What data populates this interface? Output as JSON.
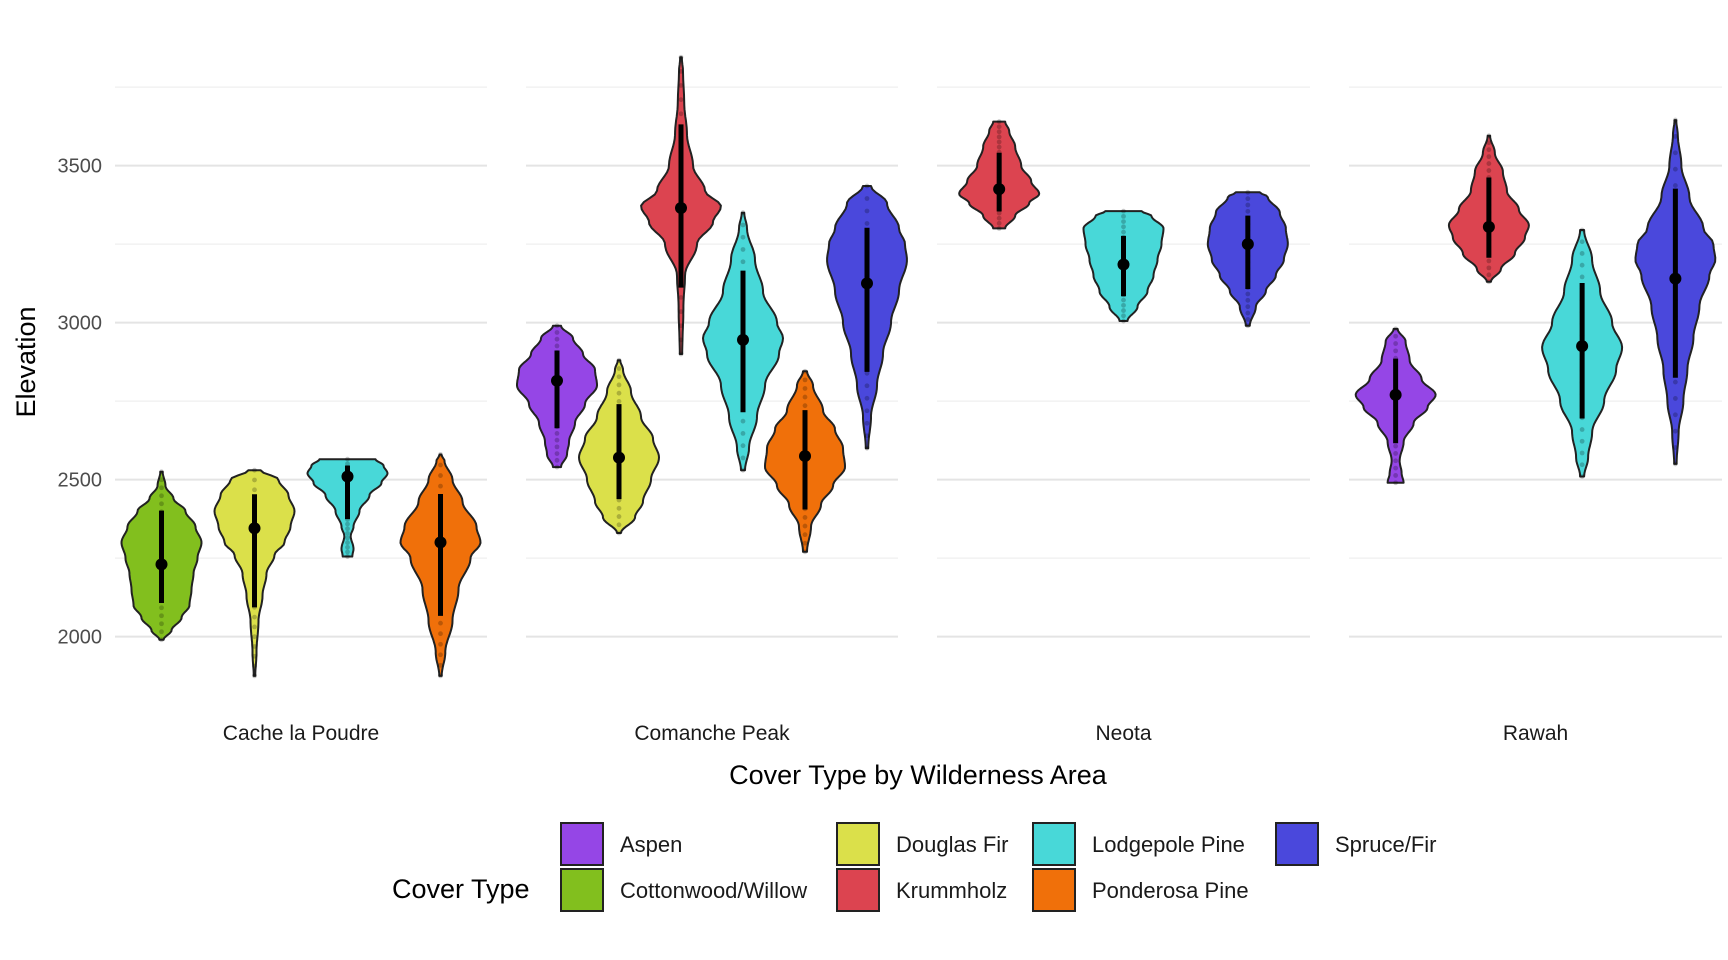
{
  "chart_data": {
    "type": "violin",
    "title": "",
    "xlabel": "Cover Type by Wilderness Area",
    "ylabel": "Elevation",
    "ylim": [
      1830,
      3900
    ],
    "yticks": [
      2000,
      2500,
      3000,
      3500
    ],
    "grid": true,
    "legend": {
      "title": "Cover Type",
      "placement": "bottom",
      "entries": [
        {
          "name": "Aspen",
          "color": "#9546e6"
        },
        {
          "name": "Cottonwood/Willow",
          "color": "#82bf1e"
        },
        {
          "name": "Douglas Fir",
          "color": "#dbe04a"
        },
        {
          "name": "Krummholz",
          "color": "#dc4450"
        },
        {
          "name": "Lodgepole Pine",
          "color": "#48d8d8"
        },
        {
          "name": "Ponderosa Pine",
          "color": "#f0700a"
        },
        {
          "name": "Spruce/Fir",
          "color": "#4a48dc"
        }
      ]
    },
    "facets": [
      {
        "name": "Cache la Poudre",
        "violins": [
          {
            "cover": "Cottonwood/Willow",
            "min": 1990,
            "max": 2525,
            "mean": 2230,
            "median": 2250,
            "profile": [
              [
                1990,
                0.05
              ],
              [
                2020,
                0.25
              ],
              [
                2060,
                0.5
              ],
              [
                2100,
                0.7
              ],
              [
                2150,
                0.75
              ],
              [
                2200,
                0.8
              ],
              [
                2250,
                0.9
              ],
              [
                2300,
                1.0
              ],
              [
                2350,
                0.85
              ],
              [
                2400,
                0.6
              ],
              [
                2440,
                0.3
              ],
              [
                2480,
                0.1
              ],
              [
                2525,
                0.03
              ]
            ]
          },
          {
            "cover": "Douglas Fir",
            "min": 1875,
            "max": 2530,
            "mean": 2345,
            "median": 2360,
            "profile": [
              [
                1875,
                0.02
              ],
              [
                1950,
                0.05
              ],
              [
                2050,
                0.1
              ],
              [
                2130,
                0.2
              ],
              [
                2200,
                0.3
              ],
              [
                2260,
                0.5
              ],
              [
                2300,
                0.75
              ],
              [
                2350,
                0.9
              ],
              [
                2400,
                1.0
              ],
              [
                2450,
                0.85
              ],
              [
                2500,
                0.6
              ],
              [
                2530,
                0.15
              ]
            ]
          },
          {
            "cover": "Lodgepole Pine",
            "min": 2255,
            "max": 2565,
            "mean": 2510,
            "median": 2520,
            "profile": [
              [
                2255,
                0.12
              ],
              [
                2280,
                0.15
              ],
              [
                2320,
                0.08
              ],
              [
                2350,
                0.15
              ],
              [
                2400,
                0.3
              ],
              [
                2450,
                0.55
              ],
              [
                2490,
                0.85
              ],
              [
                2520,
                1.0
              ],
              [
                2545,
                0.9
              ],
              [
                2565,
                0.7
              ]
            ]
          },
          {
            "cover": "Ponderosa Pine",
            "min": 1875,
            "max": 2580,
            "mean": 2300,
            "median": 2300,
            "profile": [
              [
                1875,
                0.03
              ],
              [
                1950,
                0.12
              ],
              [
                2050,
                0.3
              ],
              [
                2150,
                0.45
              ],
              [
                2250,
                0.75
              ],
              [
                2300,
                1.0
              ],
              [
                2350,
                0.9
              ],
              [
                2430,
                0.55
              ],
              [
                2500,
                0.3
              ],
              [
                2560,
                0.1
              ],
              [
                2580,
                0.02
              ]
            ]
          }
        ]
      },
      {
        "name": "Comanche Peak",
        "violins": [
          {
            "cover": "Aspen",
            "min": 2540,
            "max": 2990,
            "mean": 2815,
            "median": 2815,
            "profile": [
              [
                2540,
                0.1
              ],
              [
                2580,
                0.25
              ],
              [
                2620,
                0.3
              ],
              [
                2680,
                0.45
              ],
              [
                2740,
                0.7
              ],
              [
                2800,
                1.0
              ],
              [
                2850,
                0.95
              ],
              [
                2900,
                0.65
              ],
              [
                2950,
                0.4
              ],
              [
                2990,
                0.1
              ]
            ]
          },
          {
            "cover": "Douglas Fir",
            "min": 2330,
            "max": 2880,
            "mean": 2570,
            "median": 2570,
            "profile": [
              [
                2330,
                0.05
              ],
              [
                2380,
                0.4
              ],
              [
                2430,
                0.6
              ],
              [
                2500,
                0.8
              ],
              [
                2570,
                1.0
              ],
              [
                2630,
                0.85
              ],
              [
                2700,
                0.55
              ],
              [
                2780,
                0.3
              ],
              [
                2850,
                0.1
              ],
              [
                2880,
                0.03
              ]
            ]
          },
          {
            "cover": "Krummholz",
            "min": 2900,
            "max": 3845,
            "mean": 3365,
            "median": 3370,
            "profile": [
              [
                2900,
                0.03
              ],
              [
                3050,
                0.06
              ],
              [
                3150,
                0.1
              ],
              [
                3250,
                0.4
              ],
              [
                3320,
                0.8
              ],
              [
                3370,
                1.0
              ],
              [
                3420,
                0.6
              ],
              [
                3500,
                0.3
              ],
              [
                3600,
                0.15
              ],
              [
                3700,
                0.08
              ],
              [
                3800,
                0.05
              ],
              [
                3845,
                0.02
              ]
            ]
          },
          {
            "cover": "Lodgepole Pine",
            "min": 2530,
            "max": 3350,
            "mean": 2945,
            "median": 2940,
            "profile": [
              [
                2530,
                0.05
              ],
              [
                2600,
                0.15
              ],
              [
                2700,
                0.35
              ],
              [
                2800,
                0.55
              ],
              [
                2900,
                0.9
              ],
              [
                2950,
                1.0
              ],
              [
                3000,
                0.85
              ],
              [
                3100,
                0.5
              ],
              [
                3200,
                0.3
              ],
              [
                3300,
                0.1
              ],
              [
                3350,
                0.03
              ]
            ]
          },
          {
            "cover": "Ponderosa Pine",
            "min": 2270,
            "max": 2845,
            "mean": 2575,
            "median": 2570,
            "profile": [
              [
                2270,
                0.05
              ],
              [
                2350,
                0.15
              ],
              [
                2420,
                0.4
              ],
              [
                2480,
                0.7
              ],
              [
                2540,
                1.0
              ],
              [
                2600,
                0.95
              ],
              [
                2660,
                0.75
              ],
              [
                2720,
                0.45
              ],
              [
                2800,
                0.2
              ],
              [
                2845,
                0.05
              ]
            ]
          },
          {
            "cover": "Spruce/Fir",
            "min": 2600,
            "max": 3435,
            "mean": 3125,
            "median": 3140,
            "profile": [
              [
                2600,
                0.03
              ],
              [
                2700,
                0.1
              ],
              [
                2800,
                0.25
              ],
              [
                2900,
                0.4
              ],
              [
                3000,
                0.6
              ],
              [
                3100,
                0.8
              ],
              [
                3200,
                1.0
              ],
              [
                3250,
                0.95
              ],
              [
                3300,
                0.8
              ],
              [
                3380,
                0.5
              ],
              [
                3435,
                0.1
              ]
            ]
          }
        ]
      },
      {
        "name": "Neota",
        "violins": [
          {
            "cover": "Krummholz",
            "min": 3300,
            "max": 3640,
            "mean": 3425,
            "median": 3420,
            "profile": [
              [
                3300,
                0.15
              ],
              [
                3340,
                0.4
              ],
              [
                3380,
                0.75
              ],
              [
                3410,
                1.0
              ],
              [
                3450,
                0.8
              ],
              [
                3500,
                0.55
              ],
              [
                3560,
                0.4
              ],
              [
                3610,
                0.25
              ],
              [
                3640,
                0.15
              ]
            ]
          },
          {
            "cover": "Lodgepole Pine",
            "min": 3005,
            "max": 3355,
            "mean": 3185,
            "median": 3180,
            "profile": [
              [
                3005,
                0.1
              ],
              [
                3050,
                0.35
              ],
              [
                3100,
                0.6
              ],
              [
                3150,
                0.75
              ],
              [
                3200,
                0.85
              ],
              [
                3250,
                0.95
              ],
              [
                3300,
                1.0
              ],
              [
                3340,
                0.7
              ],
              [
                3355,
                0.45
              ]
            ]
          },
          {
            "cover": "Spruce/Fir",
            "min": 2990,
            "max": 3415,
            "mean": 3250,
            "median": 3250,
            "profile": [
              [
                2990,
                0.05
              ],
              [
                3050,
                0.2
              ],
              [
                3100,
                0.45
              ],
              [
                3150,
                0.7
              ],
              [
                3200,
                0.9
              ],
              [
                3250,
                1.0
              ],
              [
                3300,
                0.95
              ],
              [
                3350,
                0.8
              ],
              [
                3400,
                0.5
              ],
              [
                3415,
                0.3
              ]
            ]
          }
        ]
      },
      {
        "name": "Rawah",
        "violins": [
          {
            "cover": "Aspen",
            "min": 2490,
            "max": 2980,
            "mean": 2770,
            "median": 2770,
            "profile": [
              [
                2490,
                0.2
              ],
              [
                2520,
                0.15
              ],
              [
                2560,
                0.1
              ],
              [
                2620,
                0.2
              ],
              [
                2680,
                0.45
              ],
              [
                2730,
                0.8
              ],
              [
                2770,
                1.0
              ],
              [
                2820,
                0.65
              ],
              [
                2880,
                0.35
              ],
              [
                2940,
                0.25
              ],
              [
                2980,
                0.05
              ]
            ]
          },
          {
            "cover": "Krummholz",
            "min": 3130,
            "max": 3595,
            "mean": 3305,
            "median": 3300,
            "profile": [
              [
                3130,
                0.05
              ],
              [
                3170,
                0.3
              ],
              [
                3220,
                0.65
              ],
              [
                3270,
                0.9
              ],
              [
                3310,
                1.0
              ],
              [
                3360,
                0.75
              ],
              [
                3420,
                0.45
              ],
              [
                3480,
                0.35
              ],
              [
                3540,
                0.15
              ],
              [
                3595,
                0.03
              ]
            ]
          },
          {
            "cover": "Lodgepole Pine",
            "min": 2510,
            "max": 3295,
            "mean": 2925,
            "median": 2920,
            "profile": [
              [
                2510,
                0.05
              ],
              [
                2570,
                0.15
              ],
              [
                2650,
                0.25
              ],
              [
                2750,
                0.55
              ],
              [
                2850,
                0.85
              ],
              [
                2920,
                1.0
              ],
              [
                3000,
                0.75
              ],
              [
                3100,
                0.45
              ],
              [
                3200,
                0.25
              ],
              [
                3295,
                0.05
              ]
            ]
          },
          {
            "cover": "Spruce/Fir",
            "min": 2550,
            "max": 3645,
            "mean": 3140,
            "median": 3160,
            "profile": [
              [
                2550,
                0.03
              ],
              [
                2650,
                0.08
              ],
              [
                2750,
                0.2
              ],
              [
                2850,
                0.3
              ],
              [
                2950,
                0.45
              ],
              [
                3050,
                0.6
              ],
              [
                3150,
                0.85
              ],
              [
                3200,
                1.0
              ],
              [
                3250,
                0.95
              ],
              [
                3300,
                0.7
              ],
              [
                3400,
                0.35
              ],
              [
                3500,
                0.15
              ],
              [
                3600,
                0.06
              ],
              [
                3645,
                0.02
              ]
            ]
          }
        ]
      }
    ]
  }
}
